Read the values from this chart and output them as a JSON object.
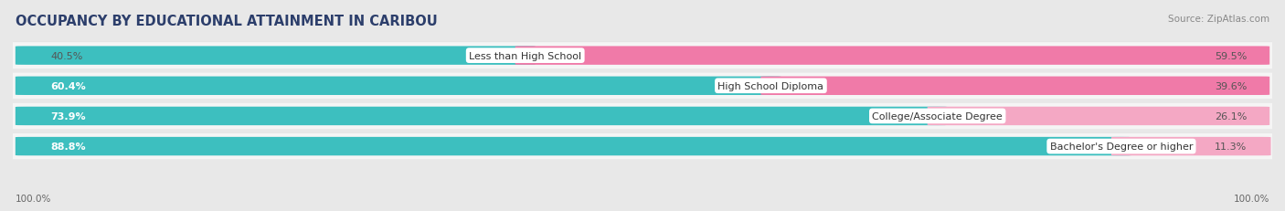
{
  "title": "OCCUPANCY BY EDUCATIONAL ATTAINMENT IN CARIBOU",
  "source": "Source: ZipAtlas.com",
  "categories": [
    "Less than High School",
    "High School Diploma",
    "College/Associate Degree",
    "Bachelor's Degree or higher"
  ],
  "owner_pct": [
    40.5,
    60.4,
    73.9,
    88.8
  ],
  "renter_pct": [
    59.5,
    39.6,
    26.1,
    11.3
  ],
  "owner_color": "#3dbfbf",
  "renter_color": "#f07aa8",
  "renter_color_light": "#f4a8c4",
  "bg_color": "#e8e8e8",
  "row_bg_color": "#f5f5f5",
  "row_shadow_color": "#d0d0d0",
  "axis_label_left": "100.0%",
  "axis_label_right": "100.0%",
  "title_fontsize": 10.5,
  "source_fontsize": 7.5,
  "pct_fontsize": 8,
  "cat_fontsize": 8,
  "legend_fontsize": 8.5,
  "axis_tick_fontsize": 7.5
}
